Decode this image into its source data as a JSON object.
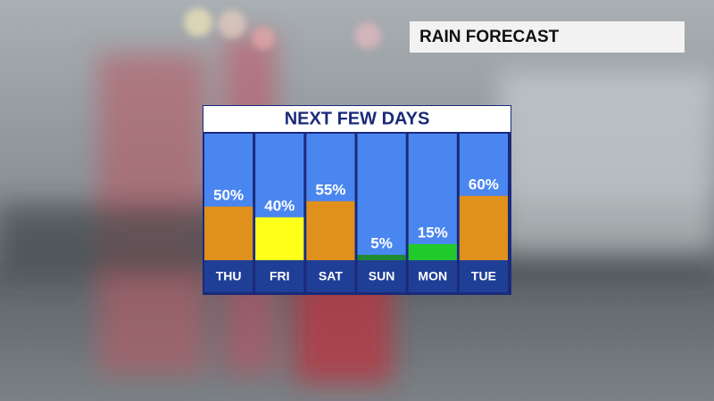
{
  "header": {
    "title": "RAIN FORECAST"
  },
  "chart_data": {
    "type": "bar",
    "title": "NEXT FEW DAYS",
    "categories": [
      "THU",
      "FRI",
      "SAT",
      "SUN",
      "MON",
      "TUE"
    ],
    "values": [
      50,
      40,
      55,
      5,
      15,
      60
    ],
    "value_labels": [
      "50%",
      "40%",
      "55%",
      "5%",
      "15%",
      "60%"
    ],
    "colors": [
      "#e0901c",
      "#ffff1a",
      "#e0901c",
      "#1f8a2f",
      "#22c92a",
      "#e0901c"
    ],
    "ylim": [
      0,
      118
    ]
  }
}
